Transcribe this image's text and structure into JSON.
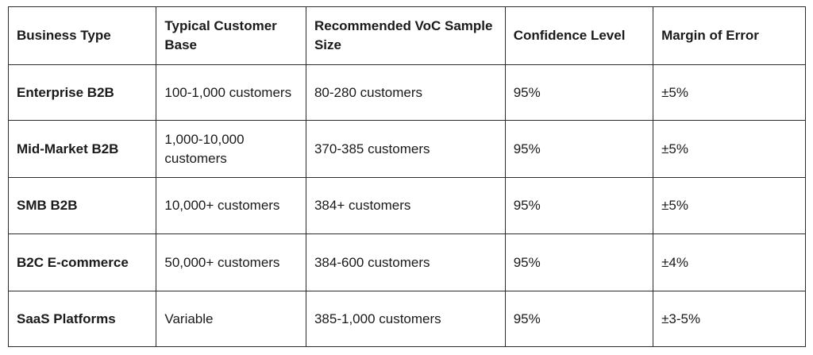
{
  "table": {
    "headers": [
      "Business Type",
      "Typical Customer Base",
      "Recommended VoC Sample Size",
      "Confidence Level",
      "Margin of Error"
    ],
    "rows": [
      [
        "Enterprise B2B",
        "100-1,000 customers",
        "80-280 customers",
        "95%",
        "±5%"
      ],
      [
        "Mid-Market B2B",
        "1,000-10,000 customers",
        "370-385 customers",
        "95%",
        "±5%"
      ],
      [
        "SMB B2B",
        "10,000+ customers",
        "384+ customers",
        "95%",
        "±5%"
      ],
      [
        "B2C E-commerce",
        "50,000+ customers",
        "384-600 customers",
        "95%",
        "±4%"
      ],
      [
        "SaaS Platforms",
        "Variable",
        "385-1,000 customers",
        "95%",
        "±3-5%"
      ]
    ]
  }
}
